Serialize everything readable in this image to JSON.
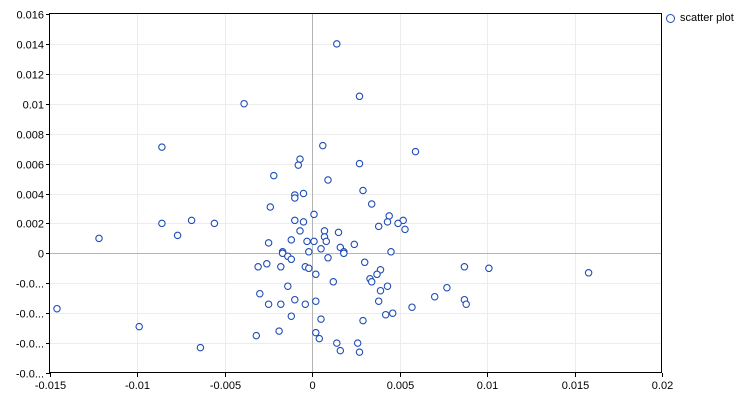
{
  "chart_data": {
    "type": "scatter",
    "title": "",
    "xlabel": "",
    "ylabel": "",
    "xlim": [
      -0.015,
      0.02
    ],
    "ylim": [
      -0.008,
      0.016
    ],
    "grid": true,
    "legend_placement": "top-right",
    "x_ticks": [
      -0.015,
      -0.01,
      -0.005,
      0,
      0.005,
      0.01,
      0.015,
      0.02
    ],
    "x_tick_labels": [
      "-0.015",
      "-0.01",
      "-0.005",
      "0",
      "0.005",
      "0.01",
      "0.015",
      "0.02"
    ],
    "y_ticks": [
      0.016,
      0.014,
      0.012,
      0.01,
      0.008,
      0.006,
      0.004,
      0.002,
      0,
      -0.002,
      -0.004,
      -0.006,
      -0.008
    ],
    "y_tick_labels": [
      "0.016",
      "0.014",
      "0.012",
      "0.01",
      "0.008",
      "0.006",
      "0.004",
      "0.002",
      "0",
      "-0.0...",
      "-0.0...",
      "-0.0...",
      "-0.0..."
    ],
    "marker_color": "#1f4db5",
    "series": [
      {
        "name": "scatter plot",
        "points": [
          [
            0.0014,
            0.014
          ],
          [
            0.0027,
            0.0105
          ],
          [
            -0.0039,
            0.01
          ],
          [
            0.0006,
            0.0072
          ],
          [
            -0.0086,
            0.0071
          ],
          [
            0.0059,
            0.0068
          ],
          [
            -0.0007,
            0.0063
          ],
          [
            -0.0008,
            0.0059
          ],
          [
            0.0027,
            0.006
          ],
          [
            -0.0022,
            0.0052
          ],
          [
            0.0009,
            0.0049
          ],
          [
            0.0029,
            0.0042
          ],
          [
            -0.001,
            0.0039
          ],
          [
            -0.0005,
            0.004
          ],
          [
            -0.001,
            0.0037
          ],
          [
            0.0034,
            0.0033
          ],
          [
            -0.0024,
            0.0031
          ],
          [
            0.0001,
            0.0026
          ],
          [
            0.0044,
            0.0025
          ],
          [
            0.0052,
            0.0022
          ],
          [
            0.0049,
            0.002
          ],
          [
            0.0043,
            0.0021
          ],
          [
            -0.001,
            0.0022
          ],
          [
            -0.0005,
            0.0021
          ],
          [
            -0.0069,
            0.0022
          ],
          [
            -0.0056,
            0.002
          ],
          [
            -0.0086,
            0.002
          ],
          [
            0.0038,
            0.0018
          ],
          [
            0.0053,
            0.0016
          ],
          [
            -0.0007,
            0.0015
          ],
          [
            0.0007,
            0.0015
          ],
          [
            0.0015,
            0.0014
          ],
          [
            -0.0077,
            0.0012
          ],
          [
            0.0007,
            0.0011
          ],
          [
            -0.0012,
            0.0009
          ],
          [
            0.0008,
            0.0008
          ],
          [
            -0.0122,
            0.001
          ],
          [
            -0.0003,
            0.0008
          ],
          [
            0.0001,
            0.0008
          ],
          [
            0.0024,
            0.0006
          ],
          [
            -0.0025,
            0.0007
          ],
          [
            0.0016,
            0.0004
          ],
          [
            0.0005,
            0.0003
          ],
          [
            0.0018,
            0.0001
          ],
          [
            0.0045,
            0.0001
          ],
          [
            -0.0017,
            0.0001
          ],
          [
            -0.0017,
            0.0
          ],
          [
            0.0018,
            0.0
          ],
          [
            -0.0002,
            0.0001
          ],
          [
            -0.0014,
            -0.0002
          ],
          [
            -0.0012,
            -0.0004
          ],
          [
            0.0009,
            -0.0003
          ],
          [
            0.003,
            -0.0006
          ],
          [
            -0.0026,
            -0.0007
          ],
          [
            -0.0031,
            -0.0009
          ],
          [
            -0.0004,
            -0.0009
          ],
          [
            -0.0002,
            -0.001
          ],
          [
            -0.0018,
            -0.0009
          ],
          [
            0.0039,
            -0.0011
          ],
          [
            0.0037,
            -0.0014
          ],
          [
            0.0002,
            -0.0014
          ],
          [
            0.0087,
            -0.0009
          ],
          [
            0.0101,
            -0.001
          ],
          [
            0.0158,
            -0.0013
          ],
          [
            0.0033,
            -0.0017
          ],
          [
            0.0034,
            -0.0019
          ],
          [
            0.0012,
            -0.0019
          ],
          [
            -0.0014,
            -0.0022
          ],
          [
            0.0043,
            -0.0022
          ],
          [
            0.0039,
            -0.0025
          ],
          [
            0.0077,
            -0.0023
          ],
          [
            -0.003,
            -0.0027
          ],
          [
            0.007,
            -0.0029
          ],
          [
            0.0087,
            -0.0031
          ],
          [
            0.0088,
            -0.0034
          ],
          [
            0.0057,
            -0.0036
          ],
          [
            -0.001,
            -0.0031
          ],
          [
            0.0002,
            -0.0032
          ],
          [
            0.0038,
            -0.0032
          ],
          [
            -0.0018,
            -0.0034
          ],
          [
            -0.0025,
            -0.0034
          ],
          [
            -0.0004,
            -0.0034
          ],
          [
            -0.0146,
            -0.0037
          ],
          [
            0.0046,
            -0.004
          ],
          [
            0.0042,
            -0.0041
          ],
          [
            -0.0012,
            -0.0042
          ],
          [
            0.0005,
            -0.0044
          ],
          [
            0.0029,
            -0.0045
          ],
          [
            -0.0099,
            -0.0049
          ],
          [
            -0.0019,
            -0.0052
          ],
          [
            0.0002,
            -0.0053
          ],
          [
            -0.0032,
            -0.0055
          ],
          [
            0.0004,
            -0.0057
          ],
          [
            0.0014,
            -0.006
          ],
          [
            0.0026,
            -0.006
          ],
          [
            -0.0064,
            -0.0063
          ],
          [
            0.0016,
            -0.0065
          ],
          [
            0.0027,
            -0.0066
          ]
        ]
      }
    ]
  }
}
